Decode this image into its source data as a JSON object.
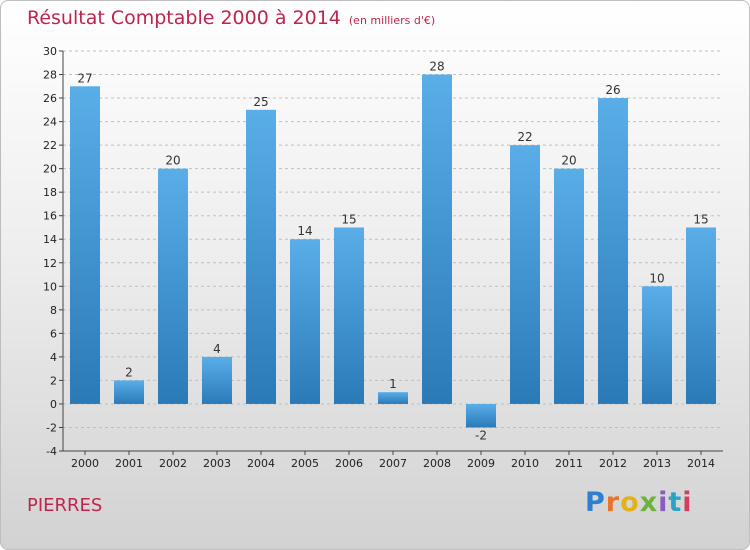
{
  "header": {
    "title": "Résultat Comptable 2000 à 2014",
    "unit": "(en milliers d'€)"
  },
  "footer": {
    "commune": "PIERRES",
    "logo_letters": [
      "P",
      "r",
      "o",
      "x",
      "i",
      "t",
      "i"
    ]
  },
  "colors": {
    "title": "#c0244d",
    "bar_top": "#5aaee8",
    "bar_bottom": "#2a7ab8",
    "grid": "#bfbfbf"
  },
  "chart_data": {
    "type": "bar",
    "title": "Résultat Comptable 2000 à 2014",
    "subtitle": "(en milliers d'€)",
    "xlabel": "",
    "ylabel": "",
    "categories": [
      "2000",
      "2001",
      "2002",
      "2003",
      "2004",
      "2005",
      "2006",
      "2007",
      "2008",
      "2009",
      "2010",
      "2011",
      "2012",
      "2013",
      "2014"
    ],
    "values": [
      27,
      2,
      20,
      4,
      25,
      14,
      15,
      1,
      28,
      -2,
      22,
      20,
      26,
      10,
      15
    ],
    "ylim": [
      -4,
      30
    ],
    "yticks": [
      -4,
      -2,
      0,
      2,
      4,
      6,
      8,
      10,
      12,
      14,
      16,
      18,
      20,
      22,
      24,
      26,
      28,
      30
    ],
    "grid": true
  }
}
